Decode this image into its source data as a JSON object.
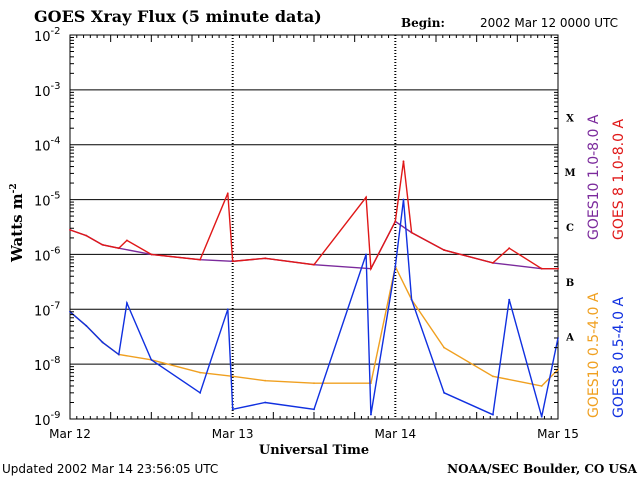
{
  "chart_data": {
    "type": "line",
    "title": "GOES Xray Flux (5 minute data)",
    "begin_label": "Begin:",
    "begin_value": "2002 Mar 12 0000 UTC",
    "xlabel": "Universal Time",
    "ylabel": "Watts m",
    "ylabel_exp": "-2",
    "x_ticks": [
      "Mar 12",
      "Mar 13",
      "Mar 14",
      "Mar 15"
    ],
    "xlim": [
      0,
      3
    ],
    "ylim": [
      1e-09,
      0.01
    ],
    "yscale": "log",
    "y_ticks": [
      {
        "base": "10",
        "exp": "-2"
      },
      {
        "base": "10",
        "exp": "-3"
      },
      {
        "base": "10",
        "exp": "-4"
      },
      {
        "base": "10",
        "exp": "-5"
      },
      {
        "base": "10",
        "exp": "-6"
      },
      {
        "base": "10",
        "exp": "-7"
      },
      {
        "base": "10",
        "exp": "-8"
      },
      {
        "base": "10",
        "exp": "-9"
      }
    ],
    "flare_classes": [
      "X",
      "M",
      "C",
      "B",
      "A"
    ],
    "grid": "horizontal at each decade",
    "legend_placement": "right",
    "series": [
      {
        "name": "GOES10 1.0-8.0 A",
        "color": "#7b2a9c",
        "x": [
          0,
          0.1,
          0.2,
          0.3,
          0.5,
          0.8,
          1.0,
          1.2,
          1.5,
          1.85,
          2.0,
          2.1,
          2.3,
          2.6,
          2.9,
          3.0
        ],
        "y": [
          2.8e-06,
          2.2e-06,
          1.5e-06,
          1.3e-06,
          1e-06,
          8e-07,
          7.5e-07,
          8.5e-07,
          6.5e-07,
          5.5e-07,
          4e-06,
          2.5e-06,
          1.2e-06,
          7e-07,
          5.5e-07,
          5.5e-07
        ]
      },
      {
        "name": "GOES 8 1.0-8.0 A",
        "color": "#e01818",
        "x": [
          0,
          0.1,
          0.2,
          0.3,
          0.35,
          0.5,
          0.8,
          0.97,
          1.0,
          1.2,
          1.5,
          1.82,
          1.85,
          2.0,
          2.05,
          2.1,
          2.3,
          2.6,
          2.7,
          2.9,
          3.0
        ],
        "y": [
          2.8e-06,
          2.2e-06,
          1.5e-06,
          1.3e-06,
          1.8e-06,
          1e-06,
          8e-07,
          1.3e-05,
          7.5e-07,
          8.5e-07,
          6.5e-07,
          1.1e-05,
          5.5e-07,
          4e-06,
          5e-05,
          2.5e-06,
          1.2e-06,
          7e-07,
          1.3e-06,
          5.5e-07,
          5.5e-07
        ]
      },
      {
        "name": "GOES10 0.5-4.0 A",
        "color": "#f0a020",
        "x": [
          0,
          0.1,
          0.2,
          0.3,
          0.5,
          0.8,
          1.0,
          1.2,
          1.5,
          1.85,
          2.0,
          2.1,
          2.3,
          2.6,
          2.9,
          3.0
        ],
        "y": [
          9e-08,
          5e-08,
          2.5e-08,
          1.5e-08,
          1.2e-08,
          7e-09,
          6e-09,
          5e-09,
          4.5e-09,
          4.5e-09,
          6e-07,
          1.5e-07,
          2e-08,
          6e-09,
          4e-09,
          8e-09
        ]
      },
      {
        "name": "GOES 8 0.5-4.0 A",
        "color": "#1030e0",
        "x": [
          0,
          0.1,
          0.2,
          0.3,
          0.35,
          0.5,
          0.8,
          0.97,
          1.0,
          1.2,
          1.5,
          1.82,
          1.85,
          2.0,
          2.05,
          2.1,
          2.3,
          2.6,
          2.7,
          2.9,
          3.0
        ],
        "y": [
          9e-08,
          5e-08,
          2.5e-08,
          1.5e-08,
          1.3e-07,
          1.2e-08,
          3e-09,
          1e-07,
          1.5e-09,
          2e-09,
          1.5e-09,
          1e-06,
          1.2e-09,
          6e-07,
          1e-05,
          1.5e-07,
          3e-09,
          1.2e-09,
          1.5e-07,
          1.1e-09,
          3e-08
        ]
      }
    ]
  },
  "footer": {
    "updated": "Updated 2002 Mar 14 23:56:05 UTC",
    "credit": "NOAA/SEC Boulder, CO USA"
  }
}
